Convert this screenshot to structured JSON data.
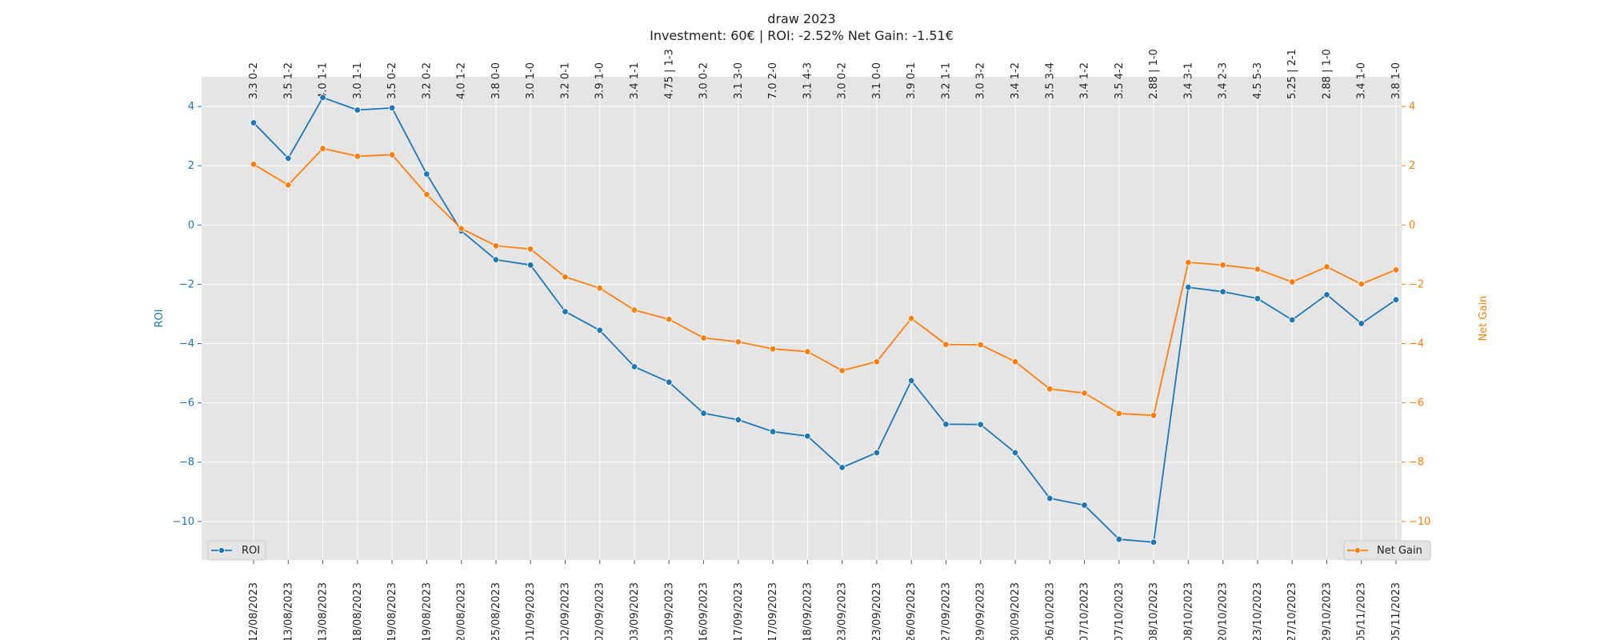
{
  "chart_data": {
    "type": "line",
    "title": "draw 2023",
    "subtitle": "Investment: 60€ | ROI: -2.52% Net Gain: -1.51€",
    "x": [
      "12/08/2023",
      "13/08/2023",
      "13/08/2023",
      "18/08/2023",
      "19/08/2023",
      "19/08/2023",
      "20/08/2023",
      "25/08/2023",
      "01/09/2023",
      "02/09/2023",
      "02/09/2023",
      "03/09/2023",
      "03/09/2023",
      "16/09/2023",
      "17/09/2023",
      "17/09/2023",
      "18/09/2023",
      "23/09/2023",
      "23/09/2023",
      "26/09/2023",
      "27/09/2023",
      "29/09/2023",
      "30/09/2023",
      "06/10/2023",
      "07/10/2023",
      "07/10/2023",
      "08/10/2023",
      "08/10/2023",
      "20/10/2023",
      "23/10/2023",
      "27/10/2023",
      "29/10/2023",
      "05/11/2023",
      "05/11/2023"
    ],
    "top_labels": [
      "3.3 0-2",
      "3.5 1-2",
      "4.0 1-1",
      "3.0 1-1",
      "3.5 0-2",
      "3.2 0-2",
      "4.0 1-2",
      "3.8 0-0",
      "3.0 1-0",
      "3.2 0-1",
      "3.9 1-0",
      "3.4 1-1",
      "4.75 | 1-3",
      "3.0 0-2",
      "3.1 3-0",
      "7.0 2-0",
      "3.1 4-3",
      "3.0 0-2",
      "3.1 0-0",
      "3.9 0-1",
      "3.2 1-1",
      "3.0 3-2",
      "3.4 1-2",
      "3.5 3-4",
      "3.4 1-2",
      "3.5 4-2",
      "2.88 | 1-0",
      "3.4 3-1",
      "3.4 2-3",
      "4.5 5-3",
      "5.25 | 2-1",
      "2.88 | 1-0",
      "3.4 1-0",
      "3.8 1-0"
    ],
    "series": [
      {
        "name": "ROI",
        "axis": "left",
        "color": "#1f77b4",
        "values": [
          3.45,
          2.25,
          4.3,
          3.88,
          3.95,
          1.72,
          -0.2,
          -1.17,
          -1.35,
          -2.92,
          -3.55,
          -4.78,
          -5.3,
          -6.35,
          -6.57,
          -6.97,
          -7.12,
          -8.18,
          -7.68,
          -5.25,
          -6.72,
          -6.73,
          -7.68,
          -9.22,
          -9.45,
          -10.6,
          -10.7,
          -2.1,
          -2.25,
          -2.48,
          -3.2,
          -2.35,
          -3.32,
          -2.52
        ]
      },
      {
        "name": "Net Gain",
        "axis": "right",
        "color": "#ff7f0e",
        "values": [
          2.05,
          1.35,
          2.58,
          2.32,
          2.37,
          1.03,
          -0.12,
          -0.7,
          -0.81,
          -1.75,
          -2.13,
          -2.87,
          -3.18,
          -3.81,
          -3.94,
          -4.18,
          -4.27,
          -4.91,
          -4.61,
          -3.15,
          -4.03,
          -4.04,
          -4.61,
          -5.53,
          -5.67,
          -6.36,
          -6.42,
          -1.26,
          -1.35,
          -1.49,
          -1.92,
          -1.41,
          -1.99,
          -1.51
        ]
      }
    ],
    "ylabel_left": "ROI",
    "ylabel_right": "Net Gain",
    "ylim": [
      -11.3,
      5.0
    ],
    "yticks": [
      4,
      2,
      0,
      -2,
      -4,
      -6,
      -8,
      -10
    ],
    "grid": true,
    "legend_left": "bottom-left",
    "legend_right": "bottom-right"
  },
  "colors": {
    "plot_bg": "#e5e5e5",
    "grid": "#ffffff",
    "roi": "#1f77b4",
    "net_gain": "#ff7f0e"
  }
}
